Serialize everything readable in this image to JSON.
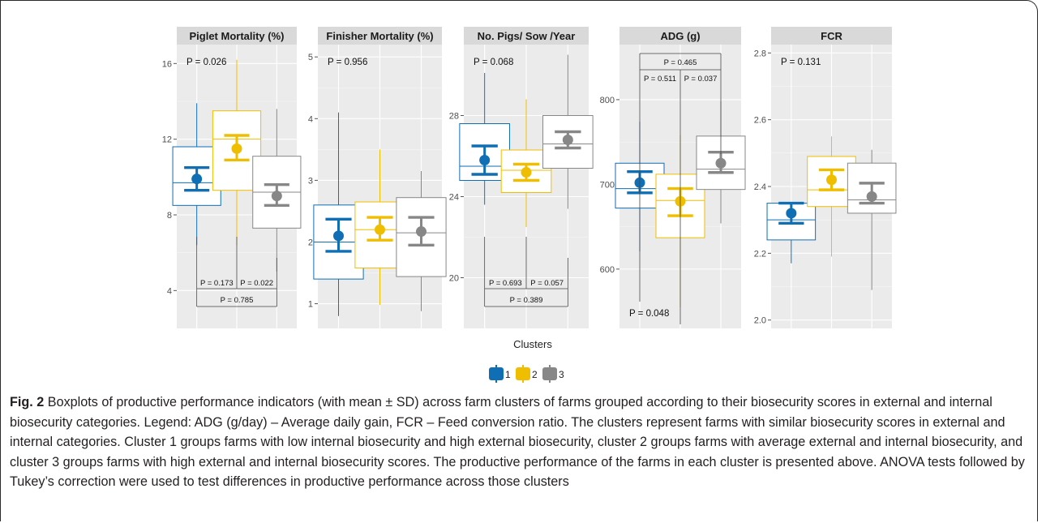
{
  "x_axis_label": "Clusters",
  "legend": [
    {
      "label": "1",
      "color": "#0f6eb4"
    },
    {
      "label": "2",
      "color": "#f0be00"
    },
    {
      "label": "3",
      "color": "#878787"
    }
  ],
  "caption": {
    "fig_label": "Fig. 2",
    "text": "Boxplots of productive performance indicators (with mean ± SD) across farm clusters of farms grouped according to their biosecurity scores in external and internal biosecurity categories. Legend: ADG (g/day) – Average daily gain, FCR – Feed conversion ratio. The clusters represent farms with similar biosecurity scores in external and internal categories. Cluster 1 groups farms with low internal biosecurity and high external biosecurity, cluster 2 groups farms with average external and internal biosecurity, and cluster 3 groups farms with high external and internal biosecurity scores. The productive performance of the farms in each cluster is presented above. ANOVA tests followed by Tukey’s correction were used to test differences in productive performance across those clusters"
  },
  "chart_data": [
    {
      "type": "box",
      "title": "Piglet Mortality (%)",
      "ylim": [
        2,
        17
      ],
      "yticks": [
        4,
        8,
        12,
        16
      ],
      "overall_p": {
        "label": "P = 0.026",
        "pos": "top-left"
      },
      "pairwise": {
        "pos": "bottom",
        "p12": "P = 0.173",
        "p23": "P = 0.022",
        "p13": "P = 0.785"
      },
      "boxes": [
        {
          "cluster": "1",
          "min": 6.4,
          "q1": 8.5,
          "median": 9.7,
          "q3": 11.6,
          "max": 13.9,
          "mean": 9.9,
          "sd_low": 9.3,
          "sd_high": 10.5
        },
        {
          "cluster": "2",
          "min": 6.4,
          "q1": 9.3,
          "median": 12.0,
          "q3": 13.5,
          "max": 16.2,
          "mean": 11.5,
          "sd_low": 10.9,
          "sd_high": 12.2
        },
        {
          "cluster": "3",
          "min": 5.0,
          "q1": 7.3,
          "median": 9.2,
          "q3": 11.1,
          "max": 13.6,
          "mean": 9.0,
          "sd_low": 8.5,
          "sd_high": 9.6
        }
      ]
    },
    {
      "type": "box",
      "title": "Finisher Mortality (%)",
      "ylim": [
        0.6,
        5.2
      ],
      "yticks": [
        1,
        2,
        3,
        4,
        5
      ],
      "overall_p": {
        "label": "P = 0.956",
        "pos": "top-left"
      },
      "boxes": [
        {
          "cluster": "1",
          "min": 0.8,
          "q1": 1.4,
          "median": 2.0,
          "q3": 2.6,
          "max": 4.1,
          "mean": 2.1,
          "sd_low": 1.85,
          "sd_high": 2.37
        },
        {
          "cluster": "2",
          "min": 0.98,
          "q1": 1.58,
          "median": 2.2,
          "q3": 2.65,
          "max": 3.5,
          "mean": 2.2,
          "sd_low": 2.03,
          "sd_high": 2.4
        },
        {
          "cluster": "3",
          "min": 0.88,
          "q1": 1.44,
          "median": 2.15,
          "q3": 2.72,
          "max": 3.15,
          "mean": 2.17,
          "sd_low": 1.95,
          "sd_high": 2.4
        }
      ]
    },
    {
      "type": "box",
      "title": "No. Pigs/ Sow /Year",
      "ylim": [
        17.5,
        31.5
      ],
      "yticks": [
        20,
        24,
        28
      ],
      "overall_p": {
        "label": "P = 0.068",
        "pos": "top-left"
      },
      "pairwise": {
        "pos": "bottom",
        "p12": "P = 0.693",
        "p23": "P = 0.057",
        "p13": "P = 0.389"
      },
      "boxes": [
        {
          "cluster": "1",
          "min": 23.6,
          "q1": 24.8,
          "median": 25.5,
          "q3": 27.6,
          "max": 30.1,
          "mean": 25.8,
          "sd_low": 25.1,
          "sd_high": 26.5
        },
        {
          "cluster": "2",
          "min": 22.5,
          "q1": 24.2,
          "median": 25.3,
          "q3": 26.3,
          "max": 28.8,
          "mean": 25.2,
          "sd_low": 24.8,
          "sd_high": 25.6
        },
        {
          "cluster": "3",
          "min": 23.4,
          "q1": 25.4,
          "median": 26.6,
          "q3": 28.0,
          "max": 31.0,
          "mean": 26.8,
          "sd_low": 26.4,
          "sd_high": 27.2
        }
      ]
    },
    {
      "type": "box",
      "title": "ADG (g)",
      "ylim": [
        530,
        865
      ],
      "yticks": [
        600,
        700,
        800
      ],
      "overall_p": {
        "label": "P = 0.048",
        "pos": "bottom-left"
      },
      "pairwise": {
        "pos": "top",
        "p12": "P = 0.511",
        "p23": "P = 0.037",
        "p13": "P = 0.465"
      },
      "boxes": [
        {
          "cluster": "1",
          "min": 621,
          "q1": 672,
          "median": 695,
          "q3": 725,
          "max": 774,
          "mean": 702,
          "sd_low": 690,
          "sd_high": 715
        },
        {
          "cluster": "2",
          "min": 555,
          "q1": 637,
          "median": 681,
          "q3": 712,
          "max": 758,
          "mean": 680,
          "sd_low": 663,
          "sd_high": 695
        },
        {
          "cluster": "3",
          "min": 654,
          "q1": 694,
          "median": 718,
          "q3": 757,
          "max": 798,
          "mean": 725,
          "sd_low": 714,
          "sd_high": 738
        }
      ]
    },
    {
      "type": "box",
      "title": "FCR",
      "ylim": [
        1.975,
        2.825
      ],
      "yticks": [
        2.0,
        2.2,
        2.4,
        2.6,
        2.8
      ],
      "ytick_labels": [
        "2.0",
        "2.2",
        "2.4",
        "2.6",
        "2.8"
      ],
      "overall_p": {
        "label": "P = 0.131",
        "pos": "top-left"
      },
      "boxes": [
        {
          "cluster": "1",
          "min": 2.17,
          "q1": 2.24,
          "median": 2.3,
          "q3": 2.35,
          "max": 2.35,
          "mean": 2.32,
          "sd_low": 2.29,
          "sd_high": 2.35
        },
        {
          "cluster": "2",
          "min": 2.19,
          "q1": 2.34,
          "median": 2.39,
          "q3": 2.49,
          "max": 2.55,
          "mean": 2.42,
          "sd_low": 2.39,
          "sd_high": 2.45
        },
        {
          "cluster": "3",
          "min": 2.09,
          "q1": 2.32,
          "median": 2.36,
          "q3": 2.47,
          "max": 2.51,
          "mean": 2.37,
          "sd_low": 2.35,
          "sd_high": 2.41
        }
      ]
    }
  ]
}
